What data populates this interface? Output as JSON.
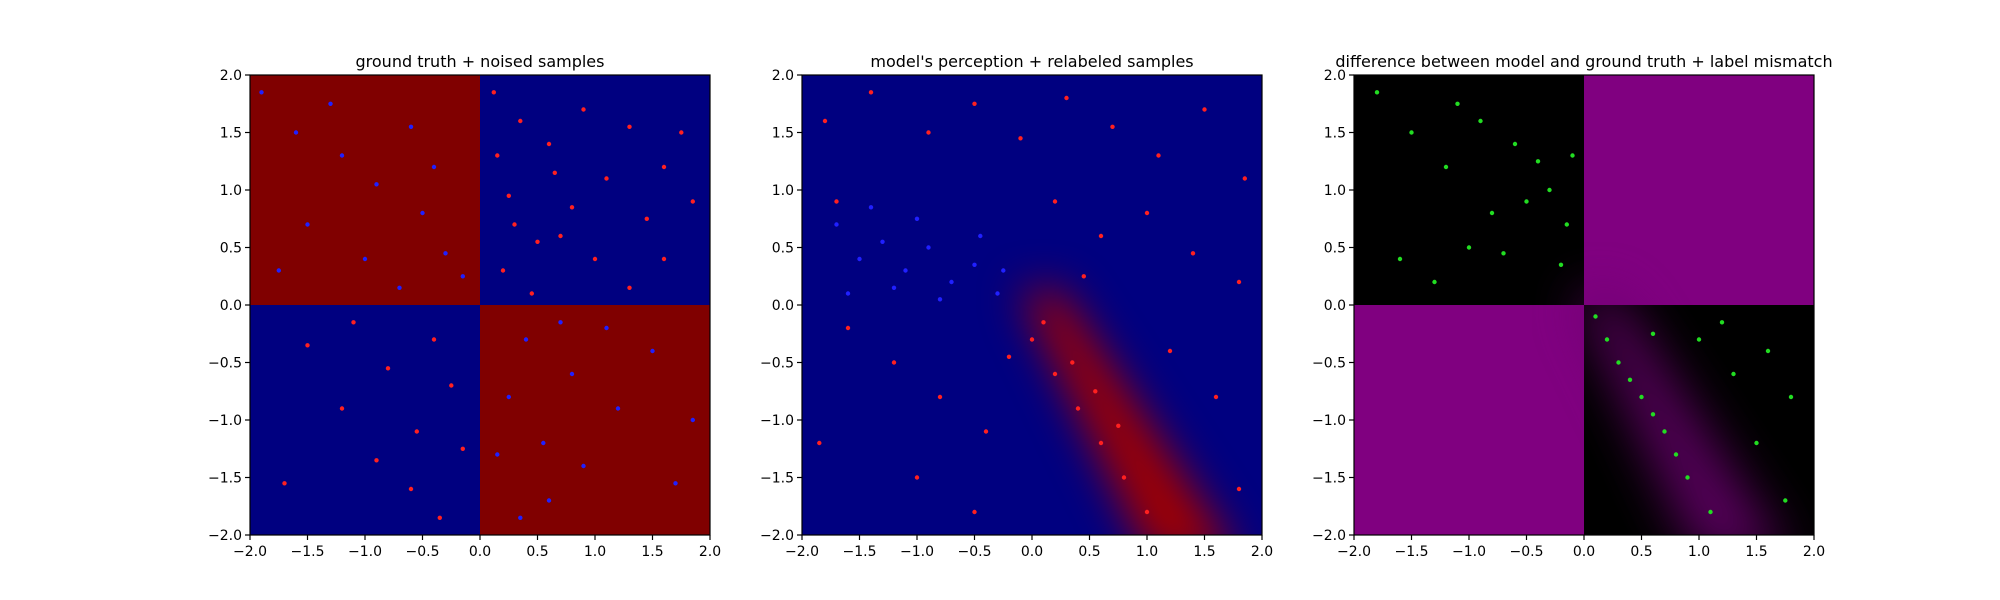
{
  "chart_data": [
    {
      "type": "scatter",
      "title": "ground truth + noised samples",
      "xlabel": "",
      "ylabel": "",
      "xlim": [
        -2.0,
        2.0
      ],
      "ylim": [
        -2.0,
        2.0
      ],
      "xticks": [
        -2.0,
        -1.5,
        -1.0,
        -0.5,
        0.0,
        0.5,
        1.0,
        1.5,
        2.0
      ],
      "yticks": [
        -2.0,
        -1.5,
        -1.0,
        -0.5,
        0.0,
        0.5,
        1.0,
        1.5,
        2.0
      ],
      "xtick_labels": [
        "−2.0",
        "−1.5",
        "−1.0",
        "−0.5",
        "0.0",
        "0.5",
        "1.0",
        "1.5",
        "2.0"
      ],
      "ytick_labels": [
        "−2.0",
        "−1.5",
        "−1.0",
        "−0.5",
        "0.0",
        "0.5",
        "1.0",
        "1.5",
        "2.0"
      ],
      "grid": false,
      "background": "XOR checkerboard: top-left and bottom-right quadrants dark red, top-right and bottom-left quadrants dark blue",
      "colors": {
        "dark_red": "#800000",
        "dark_blue": "#000080",
        "point_red": "#ff2020",
        "point_blue": "#2020ff"
      },
      "series": [
        {
          "color": "#ff2020",
          "points": [
            [
              0.12,
              1.85
            ],
            [
              0.35,
              1.6
            ],
            [
              0.6,
              1.4
            ],
            [
              0.9,
              1.7
            ],
            [
              1.3,
              1.55
            ],
            [
              1.6,
              1.2
            ],
            [
              1.85,
              0.9
            ],
            [
              0.25,
              0.95
            ],
            [
              0.5,
              0.55
            ],
            [
              0.7,
              0.6
            ],
            [
              1.0,
              0.4
            ],
            [
              1.3,
              0.15
            ],
            [
              1.6,
              0.4
            ],
            [
              0.2,
              0.3
            ],
            [
              0.45,
              0.1
            ],
            [
              0.8,
              0.85
            ],
            [
              1.1,
              1.1
            ],
            [
              1.45,
              0.75
            ],
            [
              -0.4,
              -0.3
            ],
            [
              -0.8,
              -0.55
            ],
            [
              -1.2,
              -0.9
            ],
            [
              -0.55,
              -1.1
            ],
            [
              -0.25,
              -0.7
            ],
            [
              -1.5,
              -0.35
            ],
            [
              -0.9,
              -1.35
            ],
            [
              -0.6,
              -1.6
            ],
            [
              -1.7,
              -1.55
            ],
            [
              -0.15,
              -1.25
            ],
            [
              -1.1,
              -0.15
            ],
            [
              -0.35,
              -1.85
            ],
            [
              0.3,
              0.7
            ],
            [
              0.65,
              1.15
            ],
            [
              1.75,
              1.5
            ],
            [
              0.15,
              1.3
            ]
          ]
        },
        {
          "color": "#2020ff",
          "points": [
            [
              -1.9,
              1.85
            ],
            [
              -1.6,
              1.5
            ],
            [
              -1.2,
              1.3
            ],
            [
              -0.9,
              1.05
            ],
            [
              -0.5,
              0.8
            ],
            [
              -0.3,
              0.45
            ],
            [
              -1.0,
              0.4
            ],
            [
              -1.5,
              0.7
            ],
            [
              -0.7,
              0.15
            ],
            [
              -0.15,
              0.25
            ],
            [
              -1.3,
              1.75
            ],
            [
              -0.6,
              1.55
            ],
            [
              0.4,
              -0.3
            ],
            [
              0.8,
              -0.6
            ],
            [
              1.2,
              -0.9
            ],
            [
              0.55,
              -1.2
            ],
            [
              0.25,
              -0.8
            ],
            [
              1.5,
              -0.4
            ],
            [
              0.9,
              -1.4
            ],
            [
              0.6,
              -1.7
            ],
            [
              1.7,
              -1.55
            ],
            [
              0.15,
              -1.3
            ],
            [
              1.1,
              -0.2
            ],
            [
              0.35,
              -1.85
            ],
            [
              -0.4,
              1.2
            ],
            [
              -1.75,
              0.3
            ],
            [
              1.85,
              -1.0
            ],
            [
              0.7,
              -0.15
            ]
          ]
        }
      ]
    },
    {
      "type": "scatter",
      "title": "model's perception + relabeled samples",
      "xlabel": "",
      "ylabel": "",
      "xlim": [
        -2.0,
        2.0
      ],
      "ylim": [
        -2.0,
        2.0
      ],
      "xticks": [
        -2.0,
        -1.5,
        -1.0,
        -0.5,
        0.0,
        0.5,
        1.0,
        1.5,
        2.0
      ],
      "yticks": [
        -2.0,
        -1.5,
        -1.0,
        -0.5,
        0.0,
        0.5,
        1.0,
        1.5,
        2.0
      ],
      "xtick_labels": [
        "−2.0",
        "−1.5",
        "−1.0",
        "−0.5",
        "0.0",
        "0.5",
        "1.0",
        "1.5",
        "2.0"
      ],
      "ytick_labels": [
        "−2.0",
        "−1.5",
        "−1.0",
        "−0.5",
        "0.0",
        "0.5",
        "1.0",
        "1.5",
        "2.0"
      ],
      "grid": false,
      "background": "dark blue field with a diagonal red band from about (0.0, 0.0) to (1.1, -2.0)",
      "colors": {
        "dark_red": "#800000",
        "dark_blue": "#000080",
        "point_red": "#ff2020",
        "point_blue": "#2020ff"
      },
      "series": [
        {
          "color": "#ff2020",
          "points": [
            [
              -1.8,
              1.6
            ],
            [
              -1.4,
              1.85
            ],
            [
              -0.9,
              1.5
            ],
            [
              -0.5,
              1.75
            ],
            [
              -0.1,
              1.45
            ],
            [
              0.3,
              1.8
            ],
            [
              0.7,
              1.55
            ],
            [
              1.1,
              1.3
            ],
            [
              1.5,
              1.7
            ],
            [
              1.85,
              1.1
            ],
            [
              -1.7,
              0.9
            ],
            [
              0.2,
              0.9
            ],
            [
              0.6,
              0.6
            ],
            [
              1.0,
              0.8
            ],
            [
              1.4,
              0.45
            ],
            [
              1.8,
              0.2
            ],
            [
              -1.6,
              -0.2
            ],
            [
              -1.2,
              -0.5
            ],
            [
              -0.8,
              -0.8
            ],
            [
              -0.4,
              -1.1
            ],
            [
              0.0,
              -0.3
            ],
            [
              0.2,
              -0.6
            ],
            [
              0.4,
              -0.9
            ],
            [
              0.6,
              -1.2
            ],
            [
              0.8,
              -1.5
            ],
            [
              1.0,
              -1.8
            ],
            [
              0.1,
              -0.15
            ],
            [
              0.35,
              -0.5
            ],
            [
              0.55,
              -0.75
            ],
            [
              0.75,
              -1.05
            ],
            [
              1.2,
              -0.4
            ],
            [
              1.6,
              -0.8
            ],
            [
              -1.0,
              -1.5
            ],
            [
              -0.5,
              -1.8
            ],
            [
              -1.85,
              -1.2
            ],
            [
              1.8,
              -1.6
            ],
            [
              -0.2,
              -0.45
            ],
            [
              0.45,
              0.25
            ]
          ]
        },
        {
          "color": "#2020ff",
          "points": [
            [
              -1.7,
              0.7
            ],
            [
              -1.5,
              0.4
            ],
            [
              -1.3,
              0.55
            ],
            [
              -1.1,
              0.3
            ],
            [
              -0.9,
              0.5
            ],
            [
              -0.7,
              0.2
            ],
            [
              -0.5,
              0.35
            ],
            [
              -0.3,
              0.1
            ],
            [
              -1.2,
              0.15
            ],
            [
              -0.8,
              0.05
            ],
            [
              -1.6,
              0.1
            ],
            [
              -1.0,
              0.75
            ],
            [
              -0.45,
              0.6
            ],
            [
              -0.25,
              0.3
            ],
            [
              -1.4,
              0.85
            ]
          ]
        }
      ]
    },
    {
      "type": "scatter",
      "title": "difference between model and ground truth + label mismatch",
      "xlabel": "",
      "ylabel": "",
      "xlim": [
        -2.0,
        2.0
      ],
      "ylim": [
        -2.0,
        2.0
      ],
      "xticks": [
        -2.0,
        -1.5,
        -1.0,
        -0.5,
        0.0,
        0.5,
        1.0,
        1.5,
        2.0
      ],
      "yticks": [
        -2.0,
        -1.5,
        -1.0,
        -0.5,
        0.0,
        0.5,
        1.0,
        1.5,
        2.0
      ],
      "xtick_labels": [
        "−2.0",
        "−1.5",
        "−1.0",
        "−0.5",
        "0.0",
        "0.5",
        "1.0",
        "1.5",
        "2.0"
      ],
      "ytick_labels": [
        "−2.0",
        "−1.5",
        "−1.0",
        "−0.5",
        "0.0",
        "0.5",
        "1.0",
        "1.5",
        "2.0"
      ],
      "grid": false,
      "background": "black field; top-right and bottom-left quadrants purple; faint purple diagonal band in bottom-right quadrant",
      "colors": {
        "black": "#000000",
        "purple": "#800080",
        "point_green": "#22dd22"
      },
      "series": [
        {
          "color": "#22dd22",
          "points": [
            [
              -1.8,
              1.85
            ],
            [
              -1.5,
              1.5
            ],
            [
              -1.2,
              1.2
            ],
            [
              -0.9,
              1.6
            ],
            [
              -0.6,
              1.4
            ],
            [
              -0.3,
              1.0
            ],
            [
              -0.15,
              0.7
            ],
            [
              -0.5,
              0.9
            ],
            [
              -0.8,
              0.8
            ],
            [
              -1.0,
              0.5
            ],
            [
              -1.3,
              0.2
            ],
            [
              -0.7,
              0.45
            ],
            [
              -0.2,
              0.35
            ],
            [
              -0.4,
              1.25
            ],
            [
              -1.6,
              0.4
            ],
            [
              -0.1,
              1.3
            ],
            [
              -1.1,
              1.75
            ],
            [
              0.1,
              -0.1
            ],
            [
              0.3,
              -0.5
            ],
            [
              0.5,
              -0.8
            ],
            [
              0.7,
              -1.1
            ],
            [
              0.9,
              -1.5
            ],
            [
              1.1,
              -1.8
            ],
            [
              0.2,
              -0.3
            ],
            [
              0.4,
              -0.65
            ],
            [
              0.6,
              -0.95
            ],
            [
              0.8,
              -1.3
            ],
            [
              1.0,
              -0.3
            ],
            [
              1.3,
              -0.6
            ],
            [
              1.6,
              -0.4
            ],
            [
              1.8,
              -0.8
            ],
            [
              1.5,
              -1.2
            ],
            [
              1.2,
              -0.15
            ],
            [
              0.6,
              -0.25
            ],
            [
              1.75,
              -1.7
            ]
          ]
        }
      ]
    }
  ]
}
